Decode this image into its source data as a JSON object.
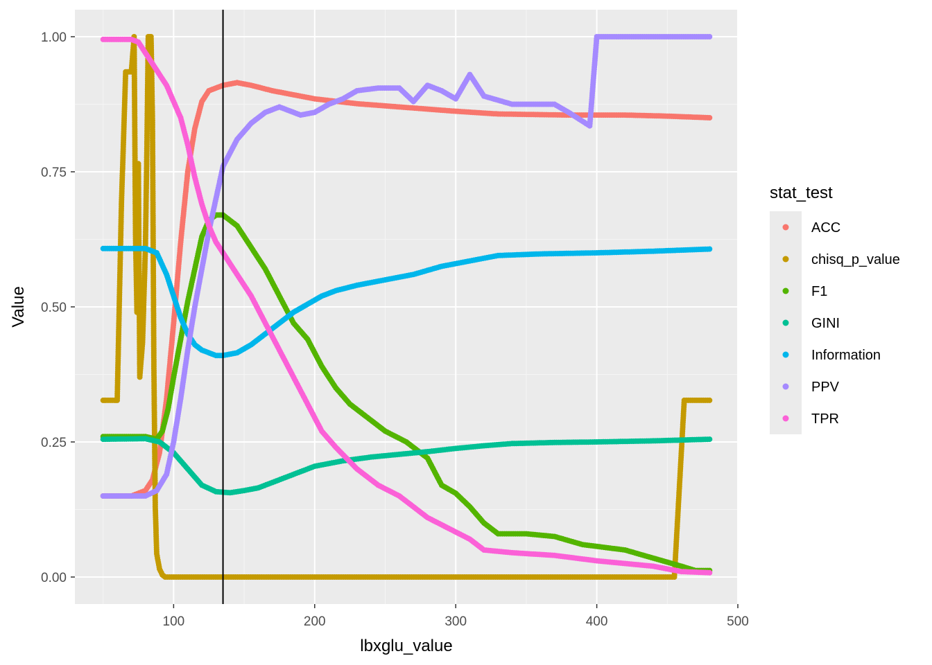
{
  "chart_data": {
    "type": "scatter",
    "xlabel": "lbxglu_value",
    "ylabel": "Value",
    "xlim": [
      30,
      500
    ],
    "ylim": [
      -0.05,
      1.05
    ],
    "x_ticks": [
      100,
      200,
      300,
      400,
      500
    ],
    "y_ticks": [
      0.0,
      0.25,
      0.5,
      0.75,
      1.0
    ],
    "x_tick_labels": [
      "100",
      "200",
      "300",
      "400",
      "500"
    ],
    "y_tick_labels": [
      "0.00",
      "0.25",
      "0.50",
      "0.75",
      "1.00"
    ],
    "vline_x": 135,
    "grid": true,
    "legend": {
      "title": "stat_test",
      "position": "right"
    },
    "series": [
      {
        "name": "ACC",
        "color": "#F8766D",
        "points": [
          [
            50,
            0.15
          ],
          [
            70,
            0.15
          ],
          [
            80,
            0.16
          ],
          [
            85,
            0.18
          ],
          [
            90,
            0.23
          ],
          [
            95,
            0.33
          ],
          [
            100,
            0.47
          ],
          [
            105,
            0.62
          ],
          [
            110,
            0.75
          ],
          [
            115,
            0.83
          ],
          [
            120,
            0.88
          ],
          [
            125,
            0.9
          ],
          [
            130,
            0.905
          ],
          [
            135,
            0.91
          ],
          [
            145,
            0.915
          ],
          [
            155,
            0.91
          ],
          [
            170,
            0.9
          ],
          [
            200,
            0.885
          ],
          [
            230,
            0.876
          ],
          [
            260,
            0.87
          ],
          [
            300,
            0.862
          ],
          [
            330,
            0.857
          ],
          [
            380,
            0.855
          ],
          [
            420,
            0.855
          ],
          [
            450,
            0.853
          ],
          [
            480,
            0.85
          ]
        ]
      },
      {
        "name": "chisq_p_value",
        "color": "#C49A00",
        "points": [
          [
            50,
            0.327
          ],
          [
            52,
            0.327
          ],
          [
            55,
            0.327
          ],
          [
            58,
            0.327
          ],
          [
            60,
            0.327
          ],
          [
            63,
            0.69
          ],
          [
            66,
            0.935
          ],
          [
            68,
            0.935
          ],
          [
            70,
            0.935
          ],
          [
            72,
            1.0
          ],
          [
            73,
            0.63
          ],
          [
            74,
            0.49
          ],
          [
            75,
            0.765
          ],
          [
            76,
            0.37
          ],
          [
            78,
            0.435
          ],
          [
            80,
            0.61
          ],
          [
            81,
            0.785
          ],
          [
            82,
            1.0
          ],
          [
            84,
            1.0
          ],
          [
            85,
            0.845
          ],
          [
            86,
            0.39
          ],
          [
            87,
            0.13
          ],
          [
            88,
            0.043
          ],
          [
            90,
            0.015
          ],
          [
            92,
            0.004
          ],
          [
            94,
            0.0
          ],
          [
            150,
            0.0
          ],
          [
            250,
            0.0
          ],
          [
            350,
            0.0
          ],
          [
            455,
            0.0
          ],
          [
            462,
            0.327
          ],
          [
            468,
            0.327
          ],
          [
            474,
            0.327
          ],
          [
            480,
            0.327
          ]
        ]
      },
      {
        "name": "F1",
        "color": "#53B400",
        "points": [
          [
            50,
            0.26
          ],
          [
            80,
            0.26
          ],
          [
            88,
            0.255
          ],
          [
            92,
            0.27
          ],
          [
            96,
            0.31
          ],
          [
            100,
            0.37
          ],
          [
            105,
            0.44
          ],
          [
            110,
            0.51
          ],
          [
            115,
            0.57
          ],
          [
            120,
            0.63
          ],
          [
            125,
            0.66
          ],
          [
            130,
            0.67
          ],
          [
            135,
            0.67
          ],
          [
            145,
            0.65
          ],
          [
            155,
            0.61
          ],
          [
            165,
            0.57
          ],
          [
            175,
            0.52
          ],
          [
            185,
            0.47
          ],
          [
            195,
            0.44
          ],
          [
            205,
            0.39
          ],
          [
            215,
            0.35
          ],
          [
            225,
            0.32
          ],
          [
            235,
            0.3
          ],
          [
            250,
            0.27
          ],
          [
            265,
            0.25
          ],
          [
            280,
            0.22
          ],
          [
            290,
            0.17
          ],
          [
            300,
            0.155
          ],
          [
            310,
            0.13
          ],
          [
            320,
            0.1
          ],
          [
            330,
            0.08
          ],
          [
            350,
            0.08
          ],
          [
            370,
            0.075
          ],
          [
            390,
            0.06
          ],
          [
            420,
            0.05
          ],
          [
            440,
            0.035
          ],
          [
            460,
            0.02
          ],
          [
            470,
            0.012
          ],
          [
            480,
            0.012
          ]
        ]
      },
      {
        "name": "GINI",
        "color": "#00C094",
        "points": [
          [
            50,
            0.255
          ],
          [
            80,
            0.256
          ],
          [
            90,
            0.25
          ],
          [
            100,
            0.23
          ],
          [
            110,
            0.2
          ],
          [
            120,
            0.17
          ],
          [
            130,
            0.158
          ],
          [
            140,
            0.156
          ],
          [
            150,
            0.16
          ],
          [
            160,
            0.165
          ],
          [
            170,
            0.175
          ],
          [
            180,
            0.185
          ],
          [
            190,
            0.195
          ],
          [
            200,
            0.205
          ],
          [
            220,
            0.215
          ],
          [
            240,
            0.222
          ],
          [
            260,
            0.227
          ],
          [
            280,
            0.232
          ],
          [
            300,
            0.238
          ],
          [
            320,
            0.243
          ],
          [
            340,
            0.247
          ],
          [
            370,
            0.249
          ],
          [
            400,
            0.25
          ],
          [
            440,
            0.252
          ],
          [
            480,
            0.255
          ]
        ]
      },
      {
        "name": "Information",
        "color": "#00B6EB",
        "points": [
          [
            50,
            0.608
          ],
          [
            80,
            0.608
          ],
          [
            88,
            0.6
          ],
          [
            95,
            0.56
          ],
          [
            100,
            0.52
          ],
          [
            105,
            0.48
          ],
          [
            110,
            0.45
          ],
          [
            115,
            0.43
          ],
          [
            120,
            0.42
          ],
          [
            130,
            0.41
          ],
          [
            135,
            0.41
          ],
          [
            145,
            0.415
          ],
          [
            155,
            0.43
          ],
          [
            165,
            0.45
          ],
          [
            175,
            0.47
          ],
          [
            185,
            0.49
          ],
          [
            195,
            0.505
          ],
          [
            205,
            0.52
          ],
          [
            215,
            0.53
          ],
          [
            230,
            0.54
          ],
          [
            250,
            0.55
          ],
          [
            270,
            0.56
          ],
          [
            290,
            0.575
          ],
          [
            310,
            0.585
          ],
          [
            330,
            0.595
          ],
          [
            360,
            0.598
          ],
          [
            400,
            0.6
          ],
          [
            440,
            0.603
          ],
          [
            480,
            0.607
          ]
        ]
      },
      {
        "name": "PPV",
        "color": "#A58AFF",
        "points": [
          [
            50,
            0.15
          ],
          [
            70,
            0.15
          ],
          [
            80,
            0.15
          ],
          [
            88,
            0.16
          ],
          [
            95,
            0.19
          ],
          [
            100,
            0.25
          ],
          [
            105,
            0.33
          ],
          [
            110,
            0.42
          ],
          [
            115,
            0.5
          ],
          [
            120,
            0.57
          ],
          [
            125,
            0.64
          ],
          [
            130,
            0.7
          ],
          [
            135,
            0.76
          ],
          [
            145,
            0.81
          ],
          [
            155,
            0.84
          ],
          [
            165,
            0.86
          ],
          [
            175,
            0.87
          ],
          [
            190,
            0.855
          ],
          [
            200,
            0.86
          ],
          [
            210,
            0.875
          ],
          [
            220,
            0.885
          ],
          [
            230,
            0.9
          ],
          [
            245,
            0.905
          ],
          [
            260,
            0.905
          ],
          [
            270,
            0.88
          ],
          [
            280,
            0.91
          ],
          [
            290,
            0.9
          ],
          [
            300,
            0.885
          ],
          [
            310,
            0.93
          ],
          [
            320,
            0.89
          ],
          [
            340,
            0.875
          ],
          [
            370,
            0.875
          ],
          [
            380,
            0.86
          ],
          [
            395,
            0.835
          ],
          [
            400,
            1.0
          ],
          [
            440,
            1.0
          ],
          [
            480,
            1.0
          ]
        ]
      },
      {
        "name": "TPR",
        "color": "#FB61D7",
        "points": [
          [
            50,
            0.995
          ],
          [
            70,
            0.995
          ],
          [
            75,
            0.99
          ],
          [
            80,
            0.97
          ],
          [
            85,
            0.95
          ],
          [
            90,
            0.93
          ],
          [
            95,
            0.91
          ],
          [
            100,
            0.88
          ],
          [
            105,
            0.85
          ],
          [
            110,
            0.8
          ],
          [
            115,
            0.74
          ],
          [
            120,
            0.69
          ],
          [
            125,
            0.65
          ],
          [
            130,
            0.62
          ],
          [
            135,
            0.6
          ],
          [
            145,
            0.56
          ],
          [
            155,
            0.52
          ],
          [
            165,
            0.47
          ],
          [
            175,
            0.42
          ],
          [
            185,
            0.37
          ],
          [
            195,
            0.32
          ],
          [
            205,
            0.27
          ],
          [
            215,
            0.24
          ],
          [
            230,
            0.2
          ],
          [
            245,
            0.17
          ],
          [
            260,
            0.15
          ],
          [
            280,
            0.11
          ],
          [
            295,
            0.09
          ],
          [
            310,
            0.07
          ],
          [
            320,
            0.05
          ],
          [
            340,
            0.045
          ],
          [
            370,
            0.04
          ],
          [
            400,
            0.03
          ],
          [
            440,
            0.02
          ],
          [
            460,
            0.01
          ],
          [
            480,
            0.008
          ]
        ]
      }
    ]
  }
}
